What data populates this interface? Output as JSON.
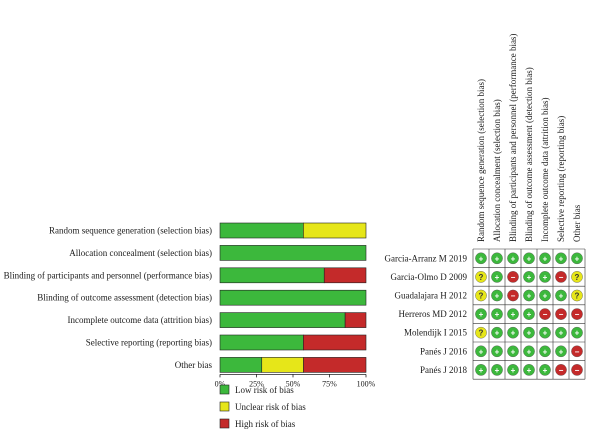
{
  "colors": {
    "low": "#3cb83c",
    "unclear": "#e6e619",
    "high": "#c42a2a"
  },
  "legend": [
    {
      "key": "low",
      "label": "Low risk of bias"
    },
    {
      "key": "unclear",
      "label": "Unclear risk of bias"
    },
    {
      "key": "high",
      "label": "High risk of bias"
    }
  ],
  "chart_data": [
    {
      "type": "bar",
      "orientation": "horizontal-stacked",
      "categories": [
        "Random sequence generation (selection bias)",
        "Allocation concealment (selection bias)",
        "Blinding of participants and personnel (performance bias)",
        "Blinding of outcome assessment (detection bias)",
        "Incomplete outcome data (attrition bias)",
        "Selective reporting (reporting bias)",
        "Other bias"
      ],
      "series": [
        {
          "name": "Low risk of bias",
          "key": "low",
          "values": [
            57.1,
            100,
            71.4,
            100,
            85.7,
            57.1,
            28.6
          ]
        },
        {
          "name": "Unclear risk of bias",
          "key": "unclear",
          "values": [
            42.9,
            0,
            0,
            0,
            0,
            0,
            28.6
          ]
        },
        {
          "name": "High risk of bias",
          "key": "high",
          "values": [
            0,
            0,
            28.6,
            0,
            14.3,
            42.9,
            42.8
          ]
        }
      ],
      "xlim": [
        0,
        100
      ],
      "xticks": [
        "0%",
        "25%",
        "50%",
        "75%",
        "100%"
      ],
      "legend_position": "bottom-left"
    },
    {
      "type": "table",
      "columns": [
        "Random sequence generation (selection bias)",
        "Allocation concealment (selection bias)",
        "Blinding of participants and personnel (performance bias)",
        "Blinding of outcome assessment (detection bias)",
        "Incomplete outcome data (attrition bias)",
        "Selective reporting (reporting bias)",
        "Other bias"
      ],
      "rows": [
        {
          "study": "Garcia-Arranz M 2019",
          "values": [
            "low",
            "low",
            "low",
            "low",
            "low",
            "low",
            "low"
          ]
        },
        {
          "study": "Garcia-Olmo D 2009",
          "values": [
            "unclear",
            "low",
            "high",
            "low",
            "low",
            "high",
            "unclear"
          ]
        },
        {
          "study": "Guadalajara H 2012",
          "values": [
            "unclear",
            "low",
            "high",
            "low",
            "low",
            "low",
            "unclear"
          ]
        },
        {
          "study": "Herreros MD 2012",
          "values": [
            "low",
            "low",
            "low",
            "low",
            "high",
            "high",
            "high"
          ]
        },
        {
          "study": "Molendijk I 2015",
          "values": [
            "unclear",
            "low",
            "low",
            "low",
            "low",
            "low",
            "low"
          ]
        },
        {
          "study": "Panés J 2016",
          "values": [
            "low",
            "low",
            "low",
            "low",
            "low",
            "low",
            "high"
          ]
        },
        {
          "study": "Panés J 2018",
          "values": [
            "low",
            "low",
            "low",
            "low",
            "low",
            "high",
            "high"
          ]
        }
      ],
      "symbols": {
        "low": "+",
        "unclear": "?",
        "high": "−"
      }
    }
  ]
}
